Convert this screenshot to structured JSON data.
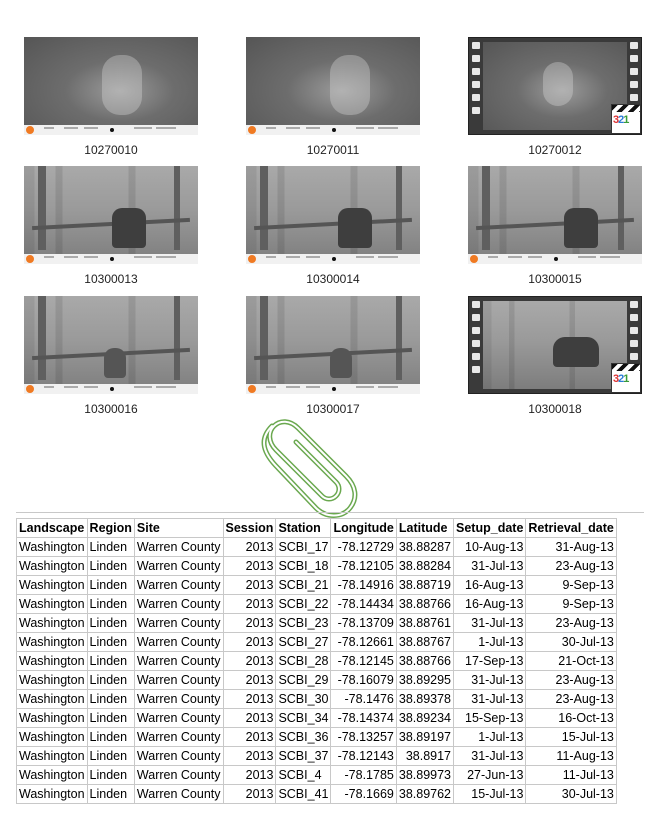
{
  "thumbnails": [
    {
      "id": "10270010",
      "kind": "photo",
      "scene": "night"
    },
    {
      "id": "10270011",
      "kind": "photo",
      "scene": "night"
    },
    {
      "id": "10270012",
      "kind": "video",
      "scene": "night"
    },
    {
      "id": "10300013",
      "kind": "photo",
      "scene": "forest"
    },
    {
      "id": "10300014",
      "kind": "photo",
      "scene": "forest"
    },
    {
      "id": "10300015",
      "kind": "photo",
      "scene": "forest"
    },
    {
      "id": "10300016",
      "kind": "photo",
      "scene": "forest"
    },
    {
      "id": "10300017",
      "kind": "photo",
      "scene": "forest"
    },
    {
      "id": "10300018",
      "kind": "video",
      "scene": "forest"
    }
  ],
  "video_badge": {
    "digits": [
      "3",
      "2",
      "1"
    ]
  },
  "icons": {
    "attachment": "paperclip-icon",
    "video": "video-clapperboard-icon"
  },
  "colors": {
    "paperclip": "#6aa84f",
    "camera_logo": "#f07a22"
  },
  "table": {
    "headers": [
      "Landscape",
      "Region",
      "Site",
      "Session",
      "Station",
      "Longitude",
      "Latitude",
      "Setup_date",
      "Retrieval_date"
    ],
    "rows": [
      [
        "Washington",
        "Linden",
        "Warren County",
        "2013",
        "SCBI_17",
        "-78.12729",
        "38.88287",
        "10-Aug-13",
        "31-Aug-13"
      ],
      [
        "Washington",
        "Linden",
        "Warren County",
        "2013",
        "SCBI_18",
        "-78.12105",
        "38.88284",
        "31-Jul-13",
        "23-Aug-13"
      ],
      [
        "Washington",
        "Linden",
        "Warren County",
        "2013",
        "SCBI_21",
        "-78.14916",
        "38.88719",
        "16-Aug-13",
        "9-Sep-13"
      ],
      [
        "Washington",
        "Linden",
        "Warren County",
        "2013",
        "SCBI_22",
        "-78.14434",
        "38.88766",
        "16-Aug-13",
        "9-Sep-13"
      ],
      [
        "Washington",
        "Linden",
        "Warren County",
        "2013",
        "SCBI_23",
        "-78.13709",
        "38.88761",
        "31-Jul-13",
        "23-Aug-13"
      ],
      [
        "Washington",
        "Linden",
        "Warren County",
        "2013",
        "SCBI_27",
        "-78.12661",
        "38.88767",
        "1-Jul-13",
        "30-Jul-13"
      ],
      [
        "Washington",
        "Linden",
        "Warren County",
        "2013",
        "SCBI_28",
        "-78.12145",
        "38.88766",
        "17-Sep-13",
        "21-Oct-13"
      ],
      [
        "Washington",
        "Linden",
        "Warren County",
        "2013",
        "SCBI_29",
        "-78.16079",
        "38.89295",
        "31-Jul-13",
        "23-Aug-13"
      ],
      [
        "Washington",
        "Linden",
        "Warren County",
        "2013",
        "SCBI_30",
        "-78.1476",
        "38.89378",
        "31-Jul-13",
        "23-Aug-13"
      ],
      [
        "Washington",
        "Linden",
        "Warren County",
        "2013",
        "SCBI_34",
        "-78.14374",
        "38.89234",
        "15-Sep-13",
        "16-Oct-13"
      ],
      [
        "Washington",
        "Linden",
        "Warren County",
        "2013",
        "SCBI_36",
        "-78.13257",
        "38.89197",
        "1-Jul-13",
        "15-Jul-13"
      ],
      [
        "Washington",
        "Linden",
        "Warren County",
        "2013",
        "SCBI_37",
        "-78.12143",
        "38.8917",
        "31-Jul-13",
        "11-Aug-13"
      ],
      [
        "Washington",
        "Linden",
        "Warren County",
        "2013",
        "SCBI_4",
        "-78.1785",
        "38.89973",
        "27-Jun-13",
        "11-Jul-13"
      ],
      [
        "Washington",
        "Linden",
        "Warren County",
        "2013",
        "SCBI_41",
        "-78.1669",
        "38.89762",
        "15-Jul-13",
        "30-Jul-13"
      ]
    ]
  }
}
